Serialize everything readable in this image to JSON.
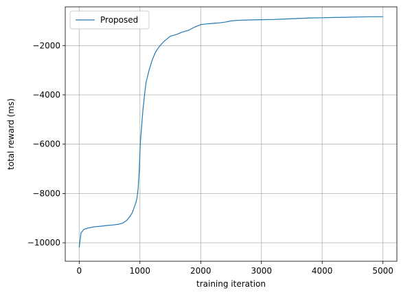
{
  "chart_data": {
    "type": "line",
    "xlabel": "training iteration",
    "ylabel": "total reward (ms)",
    "xlim": [
      -230,
      5230
    ],
    "ylim": [
      -10750,
      -430
    ],
    "xticks": [
      0,
      1000,
      2000,
      3000,
      4000,
      5000
    ],
    "xtick_labels": [
      "0",
      "1000",
      "2000",
      "3000",
      "4000",
      "5000"
    ],
    "yticks": [
      -10000,
      -8000,
      -6000,
      -4000,
      -2000
    ],
    "ytick_labels": [
      "−10000",
      "−8000",
      "−6000",
      "−4000",
      "−2000"
    ],
    "grid": true,
    "legend_position": "upper-left",
    "series": [
      {
        "name": "Proposed",
        "color": "#1f77b4",
        "x": [
          0,
          30,
          80,
          150,
          250,
          350,
          450,
          550,
          650,
          720,
          780,
          830,
          870,
          900,
          930,
          950,
          970,
          990,
          1000,
          1010,
          1030,
          1050,
          1080,
          1100,
          1150,
          1200,
          1250,
          1300,
          1350,
          1400,
          1450,
          1500,
          1600,
          1700,
          1800,
          1900,
          2000,
          2100,
          2200,
          2300,
          2400,
          2500,
          2600,
          2800,
          3000,
          3200,
          3400,
          3600,
          3800,
          4000,
          4200,
          4400,
          4600,
          4800,
          5000
        ],
        "y": [
          -10200,
          -9600,
          -9450,
          -9400,
          -9350,
          -9330,
          -9300,
          -9280,
          -9250,
          -9200,
          -9100,
          -8950,
          -8800,
          -8600,
          -8400,
          -8200,
          -7800,
          -7000,
          -6300,
          -5800,
          -5200,
          -4600,
          -3900,
          -3500,
          -3000,
          -2600,
          -2300,
          -2100,
          -1950,
          -1820,
          -1720,
          -1620,
          -1550,
          -1450,
          -1380,
          -1250,
          -1150,
          -1120,
          -1100,
          -1080,
          -1050,
          -1000,
          -980,
          -960,
          -950,
          -940,
          -920,
          -900,
          -880,
          -870,
          -860,
          -850,
          -840,
          -830,
          -830
        ]
      }
    ]
  }
}
